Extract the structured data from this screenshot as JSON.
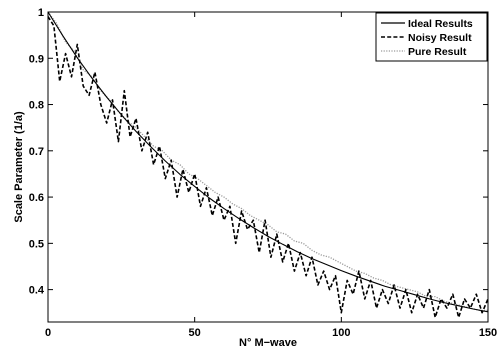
{
  "chart_data": {
    "type": "line",
    "title": "",
    "xlabel": "N° M−wave",
    "ylabel": "Scale Parameter (1/a)",
    "xlim": [
      0,
      150
    ],
    "ylim": [
      0.33,
      1.0
    ],
    "xticks": [
      0,
      50,
      100,
      150
    ],
    "yticks": [
      1,
      0.9,
      0.8,
      0.7,
      0.6,
      0.5,
      0.4
    ],
    "ytick_labels": [
      "1",
      "0.9",
      "0.8",
      "0.7",
      "0.6",
      "0.5",
      "0.4"
    ],
    "grid": false,
    "legend_position": "top-right",
    "series": [
      {
        "name": "Ideal Results",
        "style": "solid",
        "color": "#000000",
        "x": [
          0,
          5,
          10,
          15,
          20,
          25,
          30,
          35,
          40,
          45,
          50,
          55,
          60,
          65,
          70,
          75,
          80,
          85,
          90,
          95,
          100,
          105,
          110,
          115,
          120,
          125,
          130,
          135,
          140,
          145,
          150
        ],
        "y": [
          1.0,
          0.949,
          0.901,
          0.857,
          0.816,
          0.778,
          0.742,
          0.709,
          0.678,
          0.649,
          0.623,
          0.598,
          0.575,
          0.554,
          0.534,
          0.515,
          0.498,
          0.482,
          0.467,
          0.454,
          0.441,
          0.429,
          0.418,
          0.407,
          0.398,
          0.389,
          0.38,
          0.372,
          0.365,
          0.358,
          0.352
        ]
      },
      {
        "name": "Noisy Result",
        "style": "dashed",
        "color": "#000000",
        "x": [
          0,
          2,
          4,
          6,
          8,
          10,
          12,
          14,
          16,
          18,
          20,
          22,
          24,
          26,
          28,
          30,
          32,
          34,
          36,
          38,
          40,
          42,
          44,
          46,
          48,
          50,
          52,
          54,
          56,
          58,
          60,
          62,
          64,
          66,
          68,
          70,
          72,
          74,
          76,
          78,
          80,
          82,
          84,
          86,
          88,
          90,
          92,
          94,
          96,
          98,
          100,
          102,
          104,
          106,
          108,
          110,
          112,
          114,
          116,
          118,
          120,
          122,
          124,
          126,
          128,
          130,
          132,
          134,
          136,
          138,
          140,
          142,
          144,
          146,
          148,
          150
        ],
        "y": [
          0.99,
          0.97,
          0.85,
          0.91,
          0.86,
          0.93,
          0.84,
          0.82,
          0.87,
          0.8,
          0.76,
          0.81,
          0.72,
          0.83,
          0.73,
          0.77,
          0.7,
          0.74,
          0.67,
          0.71,
          0.64,
          0.68,
          0.6,
          0.66,
          0.61,
          0.65,
          0.58,
          0.62,
          0.56,
          0.6,
          0.55,
          0.58,
          0.5,
          0.57,
          0.53,
          0.55,
          0.48,
          0.55,
          0.47,
          0.52,
          0.46,
          0.5,
          0.44,
          0.48,
          0.43,
          0.47,
          0.41,
          0.44,
          0.4,
          0.43,
          0.35,
          0.42,
          0.39,
          0.44,
          0.38,
          0.42,
          0.36,
          0.4,
          0.37,
          0.41,
          0.36,
          0.4,
          0.35,
          0.39,
          0.36,
          0.4,
          0.34,
          0.38,
          0.36,
          0.39,
          0.34,
          0.38,
          0.36,
          0.39,
          0.35,
          0.38
        ]
      },
      {
        "name": "Pure Result",
        "style": "dotted",
        "color": "#9a9a9a",
        "x": [
          0,
          3,
          6,
          9,
          12,
          15,
          18,
          21,
          24,
          27,
          30,
          33,
          36,
          39,
          42,
          45,
          48,
          51,
          54,
          57,
          60,
          63,
          66,
          69,
          72,
          75,
          78,
          81,
          84,
          87,
          90,
          93,
          96,
          99,
          102,
          105,
          108,
          111,
          114,
          117,
          120,
          123,
          126,
          129,
          132,
          135,
          138,
          141,
          144,
          147,
          150
        ],
        "y": [
          1.0,
          0.975,
          0.935,
          0.915,
          0.875,
          0.86,
          0.83,
          0.81,
          0.785,
          0.765,
          0.75,
          0.73,
          0.71,
          0.7,
          0.68,
          0.67,
          0.65,
          0.64,
          0.625,
          0.61,
          0.6,
          0.585,
          0.575,
          0.56,
          0.55,
          0.54,
          0.525,
          0.52,
          0.505,
          0.5,
          0.485,
          0.475,
          0.47,
          0.46,
          0.45,
          0.44,
          0.435,
          0.425,
          0.42,
          0.41,
          0.405,
          0.4,
          0.395,
          0.385,
          0.385,
          0.375,
          0.37,
          0.365,
          0.36,
          0.355,
          0.355
        ]
      }
    ]
  }
}
